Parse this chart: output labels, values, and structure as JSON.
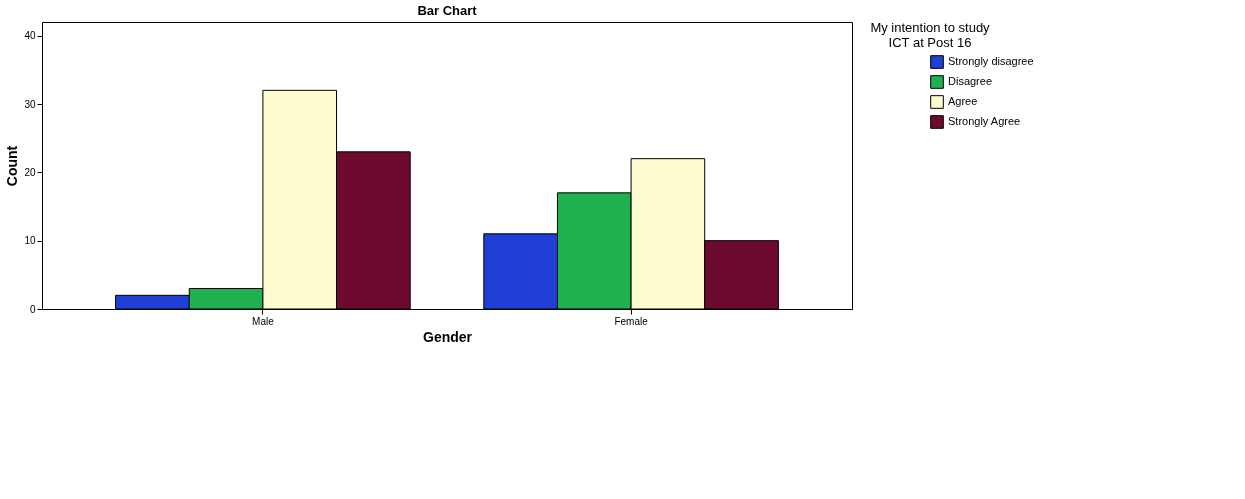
{
  "chart_data": {
    "type": "bar",
    "title": "Bar Chart",
    "xlabel": "Gender",
    "ylabel": "Count",
    "legend_title": "My intention to study\nICT at Post 16",
    "categories": [
      "Male",
      "Female"
    ],
    "series": [
      {
        "name": "Strongly disagree",
        "color": "#1f3fd6",
        "values": [
          2,
          11
        ]
      },
      {
        "name": "Disagree",
        "color": "#1fb050",
        "values": [
          3,
          17
        ]
      },
      {
        "name": "Agree",
        "color": "#fdfdd0",
        "values": [
          32,
          22
        ]
      },
      {
        "name": "Strongly Agree",
        "color": "#6e0a30",
        "values": [
          23,
          10
        ]
      }
    ],
    "ylim": [
      0,
      42
    ],
    "yticks": [
      0,
      10,
      20,
      30,
      40
    ],
    "grid": false,
    "legend": "top right"
  }
}
